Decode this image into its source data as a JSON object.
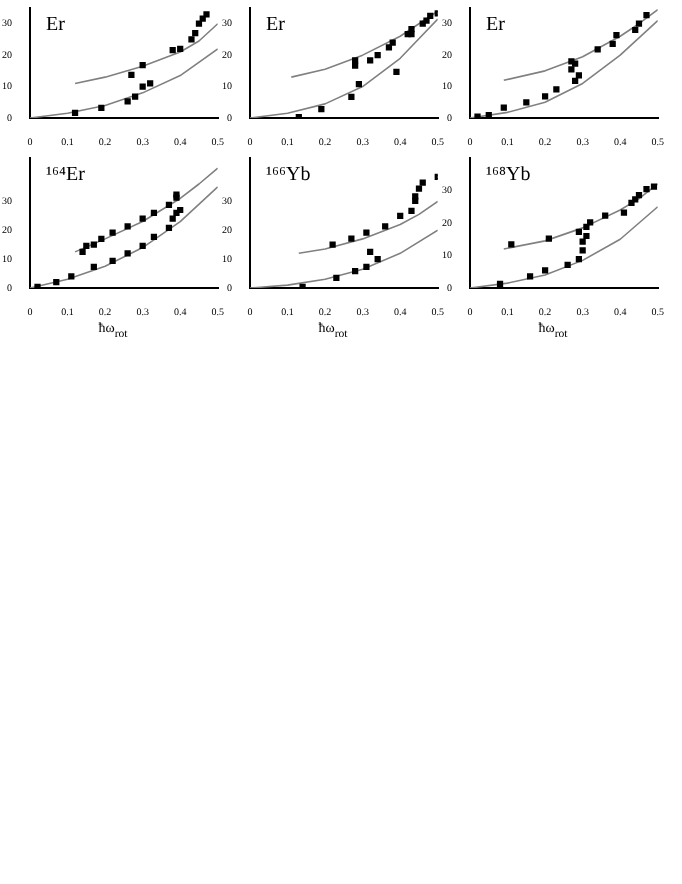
{
  "chart_data": [
    {
      "type": "scatter",
      "title": "Er",
      "xlim": [
        0,
        0.5
      ],
      "xticks": [
        0,
        0.1,
        0.2,
        0.3,
        0.4,
        0.5
      ],
      "ylim": [
        0,
        35
      ],
      "yticks": [
        0,
        10,
        20,
        30
      ],
      "grid": false,
      "legend": false,
      "series": [
        {
          "type": "scatter",
          "color": "#000000",
          "marker": "square",
          "x": [
            0.12,
            0.19,
            0.26,
            0.28,
            0.3,
            0.32,
            0.27,
            0.3,
            0.38,
            0.4,
            0.43,
            0.44,
            0.45,
            0.46,
            0.47
          ],
          "values": [
            1.6,
            3.2,
            5.3,
            6.8,
            10,
            11,
            13.7,
            16.8,
            21.6,
            22,
            25,
            27,
            30,
            31.6,
            33
          ]
        },
        {
          "type": "line",
          "color": "#808080",
          "marker": "none",
          "line_style": "solid",
          "x": [
            0.12,
            0.2,
            0.3,
            0.4,
            0.45,
            0.5
          ],
          "values": [
            11,
            13,
            16.5,
            21,
            24.5,
            30
          ]
        },
        {
          "type": "line",
          "color": "#808080",
          "marker": "none",
          "line_style": "solid",
          "x": [
            0,
            0.1,
            0.2,
            0.3,
            0.4,
            0.5
          ],
          "values": [
            0,
            1.5,
            4,
            8,
            13.5,
            22
          ]
        }
      ]
    },
    {
      "type": "scatter",
      "title": "Er",
      "xlim": [
        0,
        0.5
      ],
      "xticks": [
        0,
        0.1,
        0.2,
        0.3,
        0.4,
        0.5
      ],
      "ylim": [
        0,
        35
      ],
      "yticks": [
        0,
        10,
        20,
        30
      ],
      "grid": false,
      "legend": false,
      "series": [
        {
          "type": "scatter",
          "color": "#000000",
          "marker": "square",
          "x": [
            0.13,
            0.19,
            0.27,
            0.29,
            0.39,
            0.28,
            0.28,
            0.32,
            0.34,
            0.37,
            0.38,
            0.42,
            0.43,
            0.43,
            0.46,
            0.47,
            0.48,
            0.5
          ],
          "values": [
            0.3,
            2.8,
            6.7,
            10.8,
            14.7,
            16.7,
            18.3,
            18.3,
            20,
            22.5,
            24,
            26.7,
            28.3,
            26.7,
            30,
            31,
            32.5,
            33.3
          ]
        },
        {
          "type": "line",
          "color": "#808080",
          "marker": "none",
          "line_style": "solid",
          "x": [
            0.11,
            0.2,
            0.3,
            0.4,
            0.45,
            0.5
          ],
          "values": [
            13,
            15.5,
            20,
            26,
            30,
            34
          ]
        },
        {
          "type": "line",
          "color": "#808080",
          "marker": "none",
          "line_style": "solid",
          "x": [
            0,
            0.1,
            0.2,
            0.3,
            0.4,
            0.5
          ],
          "values": [
            0,
            1.5,
            4.5,
            10,
            19,
            31.5
          ]
        }
      ]
    },
    {
      "type": "scatter",
      "title": "Er",
      "xlim": [
        0,
        0.5
      ],
      "xticks": [
        0,
        0.1,
        0.2,
        0.3,
        0.4,
        0.5
      ],
      "ylim": [
        0,
        35
      ],
      "yticks": [
        0,
        10,
        20,
        30
      ],
      "grid": false,
      "legend": false,
      "series": [
        {
          "type": "scatter",
          "color": "#000000",
          "marker": "square",
          "x": [
            0.02,
            0.05,
            0.09,
            0.15,
            0.2,
            0.23,
            0.28,
            0.29,
            0.27,
            0.28,
            0.27,
            0.34,
            0.38,
            0.39,
            0.44,
            0.45,
            0.47
          ],
          "values": [
            0.4,
            0.9,
            3.3,
            5,
            6.9,
            9.1,
            11.8,
            13.6,
            15.5,
            17.3,
            18,
            21.8,
            23.6,
            26.4,
            28,
            30,
            32.7
          ]
        },
        {
          "type": "line",
          "color": "#808080",
          "marker": "none",
          "line_style": "solid",
          "x": [
            0.09,
            0.2,
            0.3,
            0.4,
            0.45,
            0.5
          ],
          "values": [
            12,
            15,
            19.5,
            26,
            30,
            34.5
          ]
        },
        {
          "type": "line",
          "color": "#808080",
          "marker": "none",
          "line_style": "solid",
          "x": [
            0,
            0.1,
            0.2,
            0.3,
            0.4,
            0.5
          ],
          "values": [
            0,
            1.8,
            5,
            11,
            20,
            31
          ]
        }
      ]
    },
    {
      "type": "scatter",
      "title": "¹⁶⁴Er",
      "xlabel": "ħω$_{rot}$",
      "xlim": [
        0,
        0.5
      ],
      "xticks": [
        0,
        0.1,
        0.2,
        0.3,
        0.4,
        0.5
      ],
      "ylim": [
        0,
        45
      ],
      "yticks": [
        0,
        10,
        20,
        30
      ],
      "grid": false,
      "legend": false,
      "series": [
        {
          "type": "scatter",
          "color": "#000000",
          "marker": "square",
          "x": [
            0.14,
            0.15,
            0.17,
            0.19,
            0.22,
            0.26,
            0.3,
            0.33,
            0.37,
            0.39,
            0.39,
            0.02,
            0.07,
            0.11,
            0.17,
            0.22,
            0.26,
            0.3,
            0.33,
            0.37,
            0.38,
            0.39,
            0.4
          ],
          "values": [
            12.5,
            14.6,
            15,
            17,
            19.2,
            21.3,
            24,
            26,
            28.8,
            31.3,
            32.3,
            0.4,
            2,
            4,
            7.3,
            9.4,
            12,
            14.6,
            17.7,
            20.8,
            24,
            26,
            27
          ]
        },
        {
          "type": "line",
          "color": "#808080",
          "marker": "none",
          "line_style": "solid",
          "x": [
            0.12,
            0.2,
            0.3,
            0.4,
            0.45,
            0.5
          ],
          "values": [
            12.5,
            17,
            23,
            31,
            36,
            41.5
          ]
        },
        {
          "type": "line",
          "color": "#808080",
          "marker": "none",
          "line_style": "solid",
          "x": [
            0,
            0.1,
            0.2,
            0.3,
            0.4,
            0.5
          ],
          "values": [
            0,
            3,
            7.5,
            14,
            23,
            35
          ]
        }
      ]
    },
    {
      "type": "scatter",
      "title": "¹⁶⁶Yb",
      "xlabel": "ħω$_{rot}$",
      "xlim": [
        0,
        0.5
      ],
      "xticks": [
        0,
        0.1,
        0.2,
        0.3,
        0.4,
        0.5
      ],
      "ylim": [
        0,
        45
      ],
      "yticks": [
        0,
        10,
        20,
        30
      ],
      "grid": false,
      "legend": false,
      "series": [
        {
          "type": "scatter",
          "color": "#000000",
          "marker": "square",
          "x": [
            0.14,
            0.23,
            0.28,
            0.31,
            0.32,
            0.34,
            0.22,
            0.27,
            0.31,
            0.36,
            0.4,
            0.43,
            0.44,
            0.44,
            0.45,
            0.46,
            0.5
          ],
          "values": [
            0.4,
            3.5,
            5.8,
            7.3,
            12.5,
            10,
            15,
            17.1,
            19.2,
            21.3,
            25,
            26.7,
            30.2,
            31.7,
            34.4,
            36.5,
            38.5
          ]
        },
        {
          "type": "line",
          "color": "#808080",
          "marker": "none",
          "line_style": "solid",
          "x": [
            0.13,
            0.2,
            0.3,
            0.4,
            0.45,
            0.5
          ],
          "values": [
            12,
            13.5,
            17,
            22,
            25.5,
            30
          ]
        },
        {
          "type": "line",
          "color": "#808080",
          "marker": "none",
          "line_style": "solid",
          "x": [
            0,
            0.1,
            0.2,
            0.3,
            0.4,
            0.5
          ],
          "values": [
            0,
            1,
            3,
            6.5,
            12,
            20
          ]
        }
      ]
    },
    {
      "type": "scatter",
      "title": "¹⁶⁸Yb",
      "xlabel": "ħω$_{rot}$",
      "xlim": [
        0,
        0.5
      ],
      "xticks": [
        0,
        0.1,
        0.2,
        0.3,
        0.4,
        0.5
      ],
      "ylim": [
        0,
        40
      ],
      "yticks": [
        0,
        10,
        20,
        30
      ],
      "grid": false,
      "legend": false,
      "series": [
        {
          "type": "scatter",
          "color": "#000000",
          "marker": "square",
          "x": [
            0.08,
            0.16,
            0.2,
            0.26,
            0.29,
            0.3,
            0.3,
            0.31,
            0.31,
            0.32,
            0.11,
            0.21,
            0.29,
            0.36,
            0.41,
            0.43,
            0.44,
            0.45,
            0.47,
            0.49
          ],
          "values": [
            1.3,
            3.6,
            5.4,
            7.1,
            8.9,
            11.6,
            14.3,
            16,
            18.8,
            20.2,
            13.4,
            15.2,
            17.3,
            22.3,
            23.2,
            26.2,
            27.3,
            28.6,
            30.4,
            31.2
          ]
        },
        {
          "type": "line",
          "color": "#808080",
          "marker": "none",
          "line_style": "solid",
          "x": [
            0.09,
            0.2,
            0.3,
            0.4,
            0.45,
            0.5
          ],
          "values": [
            12,
            14.5,
            18.5,
            24,
            27.5,
            32
          ]
        },
        {
          "type": "line",
          "color": "#808080",
          "marker": "none",
          "line_style": "solid",
          "x": [
            0,
            0.1,
            0.2,
            0.3,
            0.4,
            0.5
          ],
          "values": [
            0,
            1.5,
            4,
            8.5,
            15,
            25
          ]
        }
      ]
    }
  ]
}
